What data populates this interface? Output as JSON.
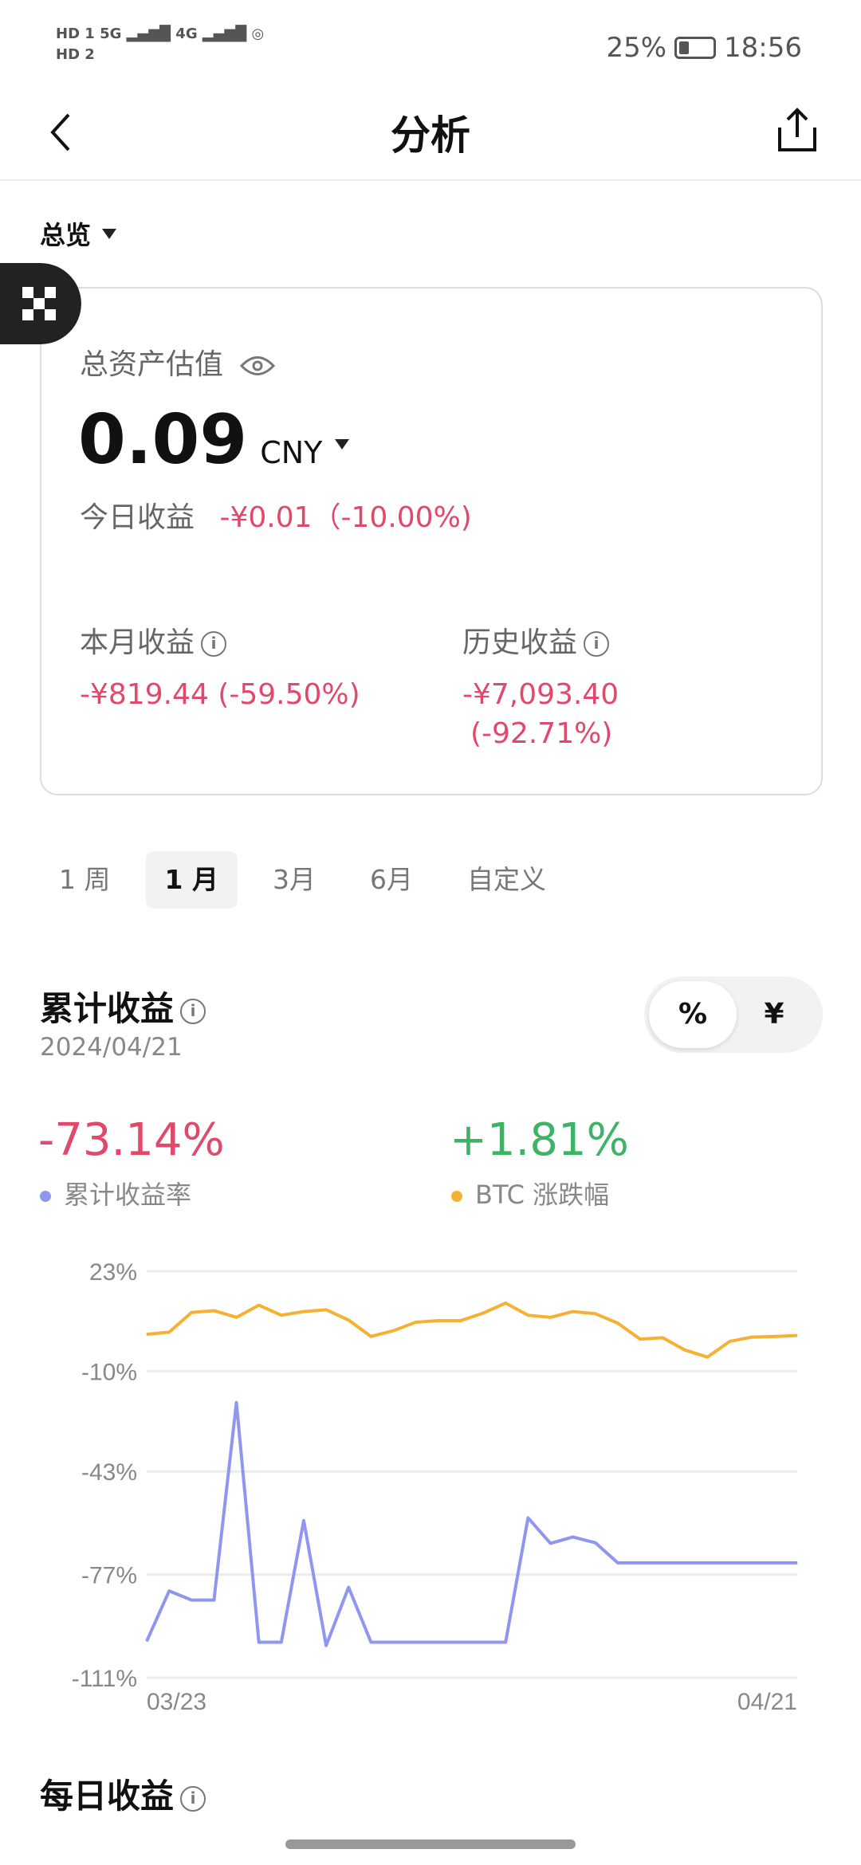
{
  "status_bar": {
    "sim1": "HD 1",
    "sim2": "HD 2",
    "net1": "5G",
    "net2": "4G",
    "battery": "25%",
    "battery_level": 25,
    "time": "18:56"
  },
  "header": {
    "title": "分析",
    "back_icon": "chevron-left-icon",
    "share_icon": "share-icon"
  },
  "overview": {
    "label": "总览"
  },
  "card": {
    "title": "总资产估值",
    "value": "0.09",
    "currency": "CNY",
    "today_label": "今日收益",
    "today_value": "-¥0.01（-10.00%)",
    "month_label": "本月收益",
    "month_value": "-¥819.44 (-59.50%)",
    "history_label": "历史收益",
    "history_value": "-¥7,093.40",
    "history_pct": "(-92.71%)"
  },
  "periods": [
    {
      "label": "1 周"
    },
    {
      "label": "1 月",
      "selected": true
    },
    {
      "label": "3月"
    },
    {
      "label": "6月"
    },
    {
      "label": "自定义"
    }
  ],
  "cumulative": {
    "title": "累计收益",
    "date": "2024/04/21",
    "toggle": [
      "%",
      "¥"
    ],
    "toggle_selected": "%",
    "my_value": "-73.14%",
    "my_label": "累计收益率",
    "btc_value": "+1.81%",
    "btc_label": "BTC 涨跌幅"
  },
  "daily": {
    "title": "每日收益"
  },
  "colors": {
    "red": "#e0496b",
    "green": "#3db465",
    "blue": "#8f96f0",
    "orange": "#f5b133"
  },
  "chart_data": {
    "type": "line",
    "x_start_label": "03/23",
    "x_end_label": "04/21",
    "yticks": [
      "23%",
      "-10%",
      "-43%",
      "-77%",
      "-111%"
    ],
    "yvalues": [
      23,
      -10,
      -43,
      -77,
      -111
    ],
    "ylim": [
      -111,
      23
    ],
    "grid": true,
    "series": [
      {
        "name": "BTC 涨跌幅",
        "color": "#f5b133",
        "values": [
          2.2,
          2.9,
          9.4,
          10.0,
          7.8,
          11.8,
          8.5,
          9.7,
          10.3,
          6.9,
          1.5,
          3.4,
          6.2,
          6.7,
          6.7,
          9.2,
          12.5,
          8.5,
          7.8,
          9.7,
          9.0,
          5.9,
          0.6,
          1.1,
          -3.0,
          -5.3,
          -0.1,
          1.3,
          1.5,
          1.81
        ]
      },
      {
        "name": "累计收益率",
        "color": "#8f96f0",
        "values": [
          -99.0,
          -82.4,
          -85.4,
          -85.4,
          -20.3,
          -99.3,
          -99.3,
          -59.2,
          -100.4,
          -81.2,
          -99.3,
          -99.3,
          -99.3,
          -99.3,
          -99.3,
          -99.3,
          -99.3,
          -58.3,
          -66.7,
          -64.6,
          -66.5,
          -73.14,
          -73.14,
          -73.14,
          -73.14,
          -73.14,
          -73.14,
          -73.14,
          -73.14,
          -73.14
        ]
      }
    ]
  }
}
